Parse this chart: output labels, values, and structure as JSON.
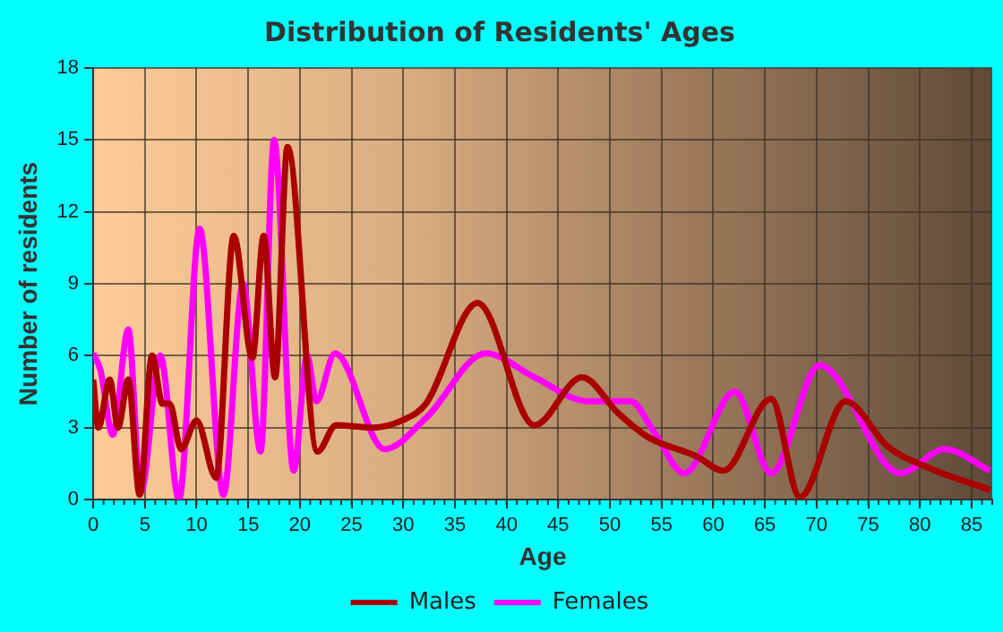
{
  "chart_data": {
    "type": "line",
    "title": "Distribution of Residents' Ages",
    "xlabel": "Age",
    "ylabel": "Number of residents",
    "xlim": [
      0,
      87
    ],
    "xticks": [
      0,
      5,
      10,
      15,
      20,
      25,
      30,
      35,
      40,
      45,
      50,
      55,
      60,
      65,
      70,
      75,
      80,
      85
    ],
    "ylim": [
      0,
      18
    ],
    "yticks": [
      0,
      3,
      6,
      9,
      12,
      15,
      18
    ],
    "grid": true,
    "legend": "bottom",
    "marker": "none",
    "line_style": "solid",
    "series": [
      {
        "name": "Males",
        "color": "#aa0000",
        "x": [
          0,
          0.5,
          1.6,
          2.4,
          3.4,
          4.5,
          5.7,
          6.7,
          7.4,
          8.5,
          10,
          11.9,
          13.6,
          15.4,
          16.5,
          17.6,
          18.8,
          21.7,
          23.5,
          27,
          29.9,
          32.2,
          37.2,
          42.7,
          47.3,
          50.8,
          53.7,
          58.4,
          61,
          65.6,
          68.4,
          72.8,
          76.9,
          81,
          86.8
        ],
        "values": [
          5,
          3,
          5,
          3,
          5,
          0.2,
          6,
          4,
          4,
          2.1,
          3.3,
          0.9,
          11,
          5.9,
          11,
          5.1,
          14.7,
          2,
          3.1,
          3,
          3.3,
          4,
          8.2,
          3.1,
          5.1,
          3.6,
          2.6,
          1.8,
          1.2,
          4.2,
          0.1,
          4.1,
          2.2,
          1.3,
          0.4
        ]
      },
      {
        "name": "Females",
        "color": "#ff00ff",
        "x": [
          0,
          0.7,
          1.9,
          3.4,
          4.6,
          6.5,
          8.3,
          10.3,
          12.6,
          14.5,
          16.2,
          17.5,
          19.4,
          20.7,
          21.6,
          23.4,
          28.2,
          32.2,
          38,
          42.7,
          47.9,
          52,
          54.3,
          57.2,
          62.1,
          65.6,
          70.3,
          78.1,
          82.4,
          86.8
        ],
        "values": [
          6.1,
          5.4,
          2.7,
          7.1,
          0.3,
          6,
          0,
          11.3,
          0.2,
          9,
          2,
          15,
          1.2,
          6,
          4.1,
          6.1,
          2.1,
          3.4,
          6.1,
          5.1,
          4.1,
          4.1,
          2.8,
          1.1,
          4.5,
          1.1,
          5.6,
          1.1,
          2.1,
          1.2
        ]
      }
    ]
  }
}
